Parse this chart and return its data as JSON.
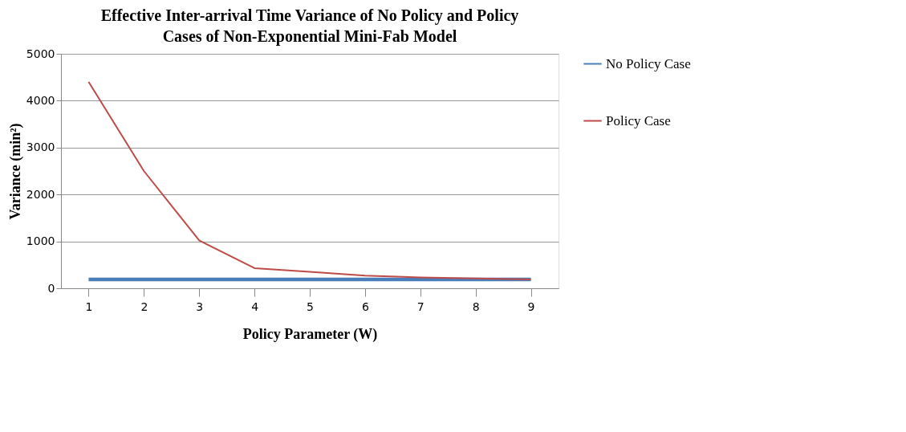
{
  "chart_data": {
    "type": "line",
    "title": "Effective Inter-arrival Time Variance of No Policy and Policy Cases of Non-Exponential Mini-Fab Model",
    "xlabel": "Policy Parameter (W)",
    "ylabel": "Variance (min²)",
    "categories": [
      "1",
      "2",
      "3",
      "4",
      "5",
      "6",
      "7",
      "8",
      "9"
    ],
    "series": [
      {
        "name": "No Policy Case",
        "color": "#4a7ebb",
        "values": [
          190,
          190,
          190,
          190,
          190,
          190,
          190,
          190,
          190
        ]
      },
      {
        "name": "Policy Case",
        "color": "#be4b48",
        "values": [
          4400,
          2500,
          1020,
          430,
          350,
          270,
          230,
          210,
          190
        ]
      }
    ],
    "ylim": [
      0,
      5000
    ],
    "yticks": [
      0,
      1000,
      2000,
      3000,
      4000,
      5000
    ],
    "grid": "y",
    "legend": "right",
    "marker": "none",
    "line_style": "solid"
  }
}
